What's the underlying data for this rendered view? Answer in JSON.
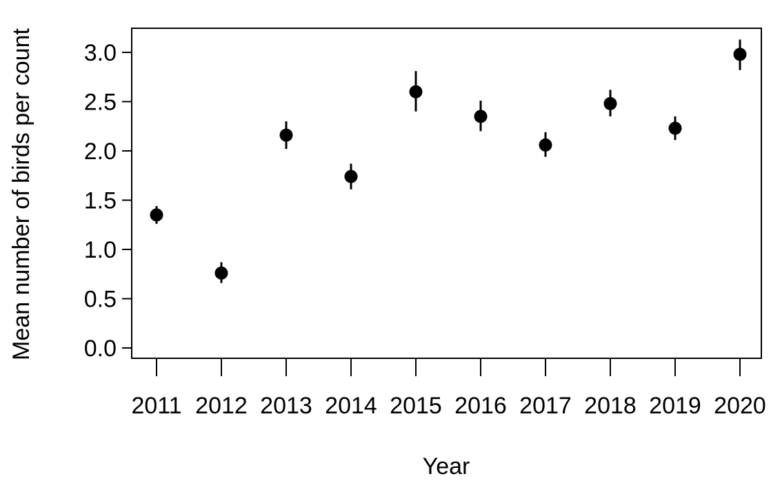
{
  "chart_data": {
    "type": "scatter",
    "title": "",
    "xlabel": "Year",
    "ylabel": "Mean number of birds per count",
    "categories": [
      "2011",
      "2012",
      "2013",
      "2014",
      "2015",
      "2016",
      "2017",
      "2018",
      "2019",
      "2020"
    ],
    "series": [
      {
        "values": [
          1.35,
          0.76,
          2.16,
          1.74,
          2.6,
          2.35,
          2.06,
          2.48,
          2.23,
          2.98
        ],
        "error_low": [
          1.26,
          0.66,
          2.02,
          1.61,
          2.4,
          2.2,
          1.94,
          2.35,
          2.11,
          2.82
        ],
        "error_high": [
          1.44,
          0.87,
          2.3,
          1.87,
          2.81,
          2.51,
          2.19,
          2.62,
          2.35,
          3.13
        ]
      }
    ],
    "yticks": [
      "0.0",
      "0.5",
      "1.0",
      "1.5",
      "2.0",
      "2.5",
      "3.0"
    ],
    "ylim": [
      -0.1,
      3.25
    ],
    "grid": false,
    "legend": "none",
    "colors": {
      "point": "#000000",
      "axis": "#000000",
      "background": "#ffffff"
    }
  }
}
